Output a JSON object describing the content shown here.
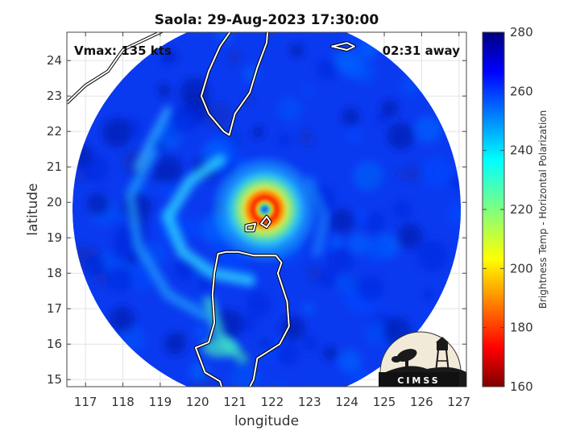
{
  "chart_data": {
    "type": "heatmap",
    "title": "Saola: 29-Aug-2023 17:30:00",
    "xlabel": "longitude",
    "ylabel": "latitude",
    "xlim": [
      116.5,
      127.2
    ],
    "ylim": [
      14.8,
      24.8
    ],
    "xticks": [
      117,
      118,
      119,
      120,
      121,
      122,
      123,
      124,
      125,
      126,
      127
    ],
    "yticks": [
      15,
      16,
      17,
      18,
      19,
      20,
      21,
      22,
      23,
      24
    ],
    "grid": true,
    "annotations": {
      "vmax": "Vmax: 135 kts",
      "away": "02:31 away"
    },
    "storm": {
      "eye_lon": 121.8,
      "eye_lat": 19.8,
      "swath_center_lon": 121.85,
      "swath_center_lat": 19.8,
      "swath_radius_deg": 5.2
    },
    "colorbar": {
      "label": "Brightness Temp - Horizontal Polarization",
      "min": 160,
      "max": 280,
      "ticks": [
        160,
        180,
        200,
        220,
        240,
        260,
        280
      ],
      "colormap": "jet"
    },
    "coastlines": {
      "taiwan": [
        [
          121.9,
          25.1
        ],
        [
          121.6,
          25.3
        ],
        [
          121.0,
          25.0
        ],
        [
          120.6,
          24.4
        ],
        [
          120.3,
          23.7
        ],
        [
          120.1,
          23.0
        ],
        [
          120.3,
          22.5
        ],
        [
          120.7,
          22.0
        ],
        [
          120.85,
          21.9
        ],
        [
          121.0,
          22.5
        ],
        [
          121.4,
          23.1
        ],
        [
          121.6,
          23.8
        ],
        [
          121.85,
          24.5
        ],
        [
          121.9,
          25.1
        ]
      ],
      "luzon": [
        [
          120.55,
          18.55
        ],
        [
          120.75,
          18.6
        ],
        [
          121.1,
          18.6
        ],
        [
          121.5,
          18.5
        ],
        [
          122.1,
          18.5
        ],
        [
          122.25,
          18.3
        ],
        [
          122.15,
          18.0
        ],
        [
          122.4,
          17.2
        ],
        [
          122.45,
          16.5
        ],
        [
          122.2,
          16.0
        ],
        [
          121.6,
          15.6
        ],
        [
          121.5,
          15.0
        ],
        [
          121.3,
          14.6
        ],
        [
          120.7,
          14.6
        ],
        [
          120.6,
          14.95
        ],
        [
          120.2,
          15.2
        ],
        [
          119.95,
          15.9
        ],
        [
          120.3,
          16.05
        ],
        [
          120.45,
          16.6
        ],
        [
          120.4,
          17.4
        ],
        [
          120.45,
          18.0
        ],
        [
          120.55,
          18.55
        ]
      ],
      "babuyan": [
        [
          121.85,
          19.6
        ],
        [
          121.95,
          19.45
        ],
        [
          121.85,
          19.3
        ],
        [
          121.7,
          19.4
        ],
        [
          121.85,
          19.6
        ]
      ],
      "calayan": [
        [
          121.3,
          19.35
        ],
        [
          121.55,
          19.4
        ],
        [
          121.5,
          19.2
        ],
        [
          121.3,
          19.2
        ],
        [
          121.3,
          19.35
        ]
      ],
      "china": [
        [
          116.5,
          22.8
        ],
        [
          117.0,
          23.3
        ],
        [
          117.6,
          23.7
        ],
        [
          118.0,
          24.3
        ],
        [
          118.6,
          24.6
        ],
        [
          119.4,
          25.0
        ]
      ],
      "ryukyu": [
        [
          123.6,
          24.4
        ],
        [
          124.0,
          24.5
        ],
        [
          124.2,
          24.4
        ],
        [
          124.0,
          24.3
        ],
        [
          123.6,
          24.4
        ]
      ]
    }
  },
  "logo": {
    "text": "CIMSS"
  }
}
